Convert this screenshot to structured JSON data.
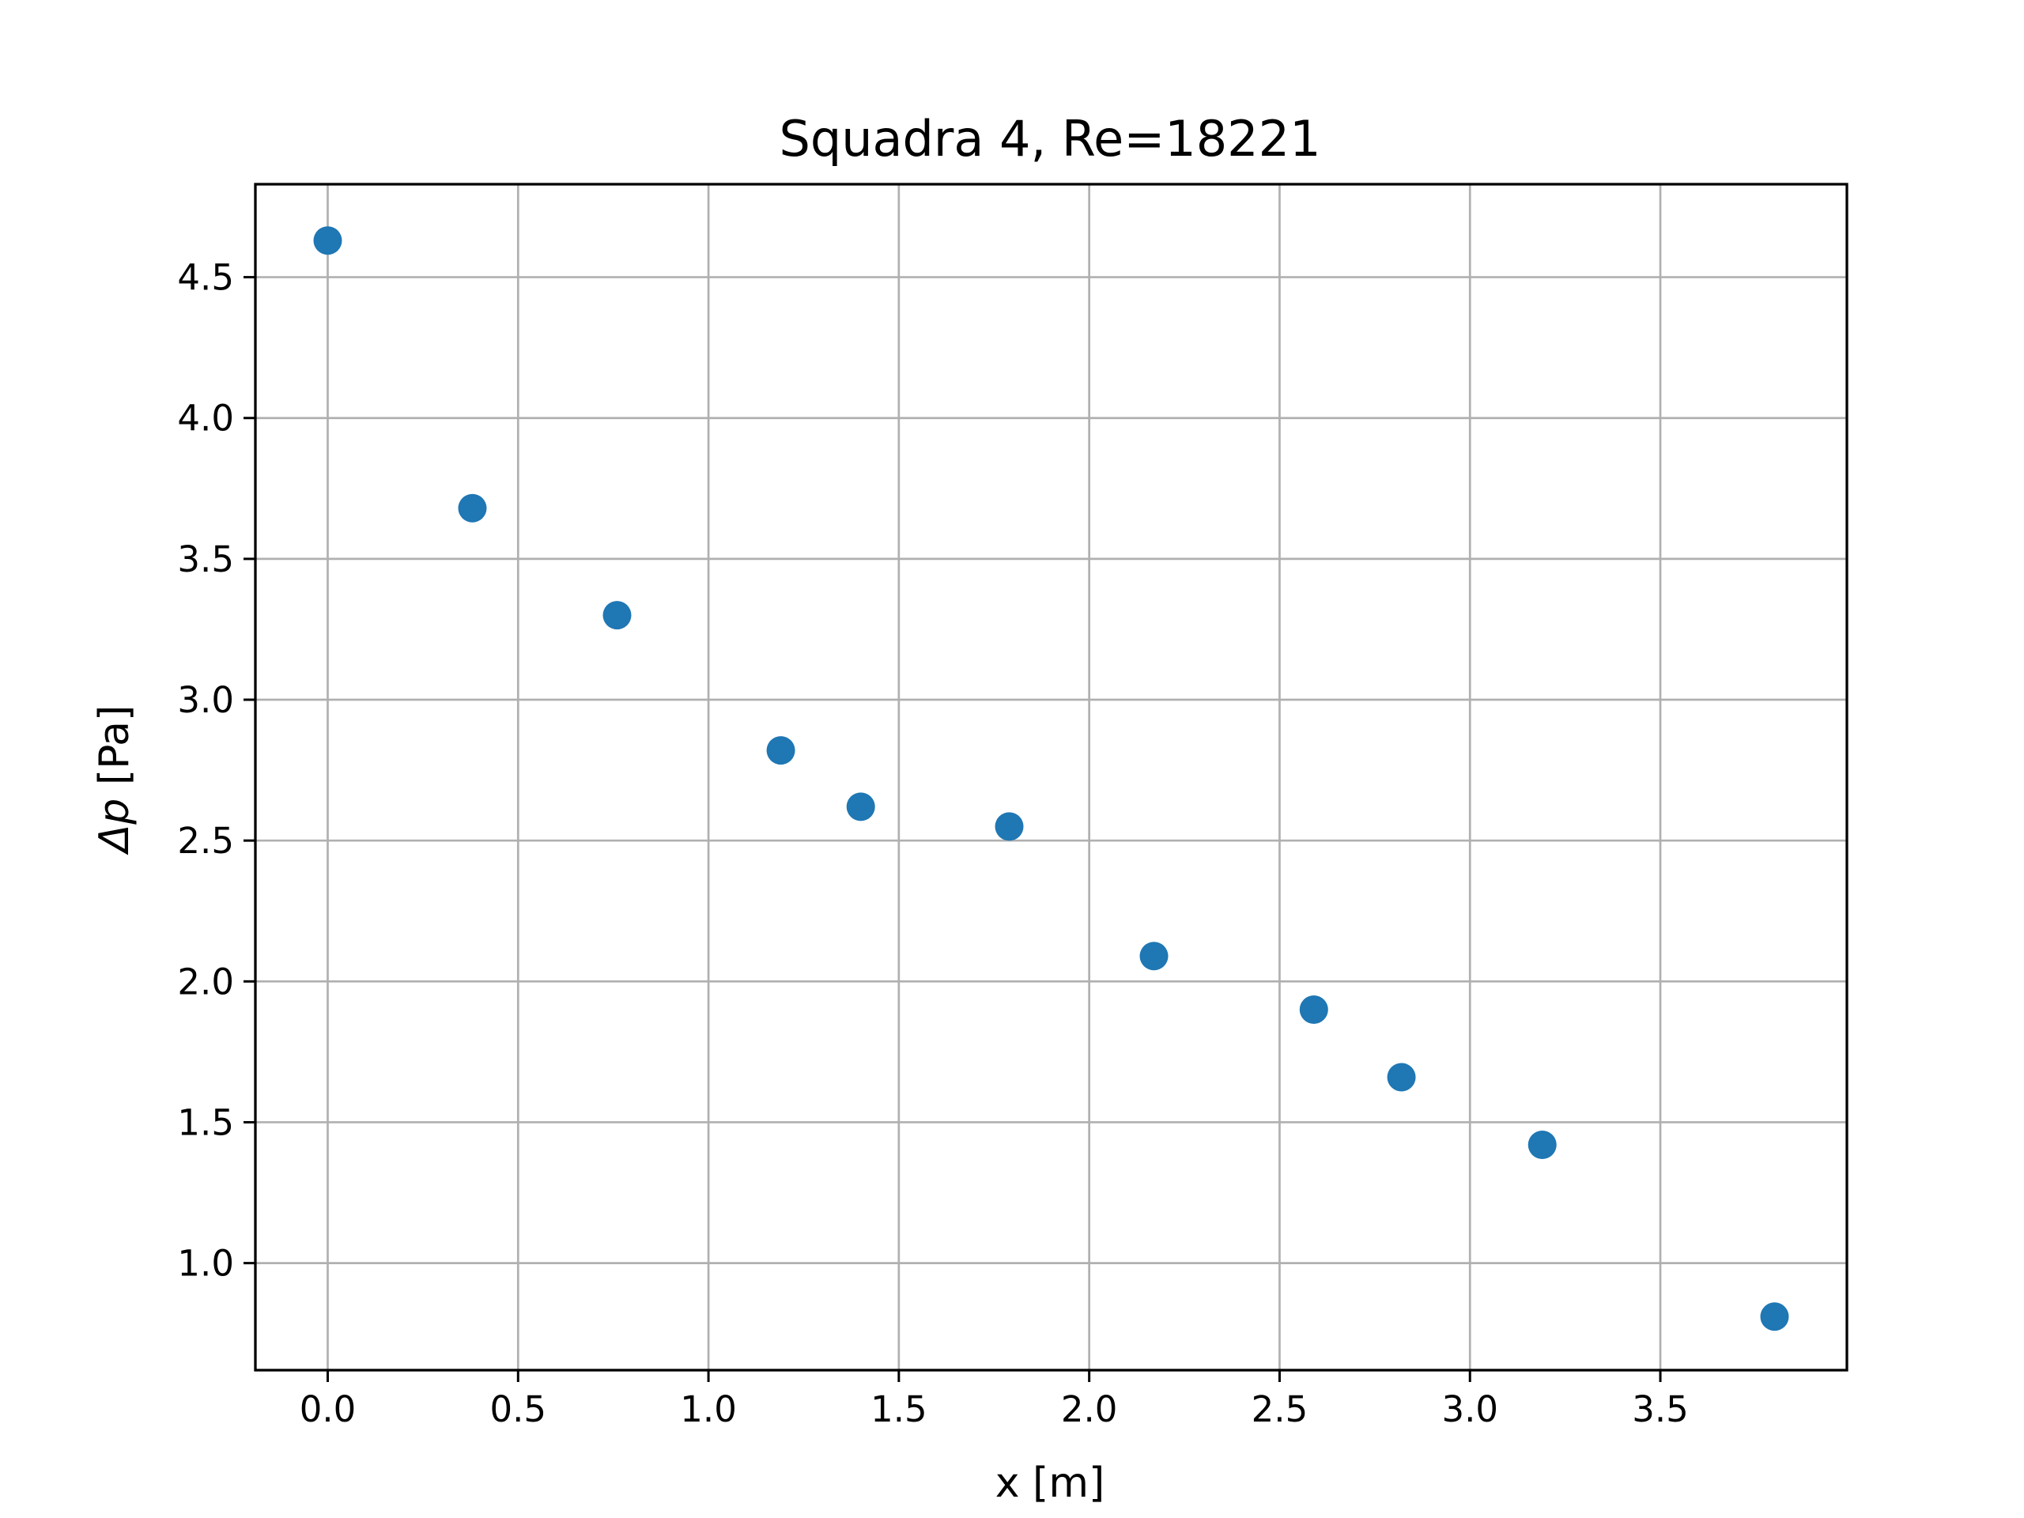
{
  "chart_data": {
    "type": "scatter",
    "title": "Squadra 4, Re=18221",
    "xlabel": "x [m]",
    "ylabel_symbol": "Δp",
    "ylabel_unit": " [Pa]",
    "xlim": [
      -0.19,
      3.99
    ],
    "ylim": [
      0.62,
      4.83
    ],
    "x_ticks": [
      0.0,
      0.5,
      1.0,
      1.5,
      2.0,
      2.5,
      3.0,
      3.5
    ],
    "x_tick_labels": [
      "0.0",
      "0.5",
      "1.0",
      "1.5",
      "2.0",
      "2.5",
      "3.0",
      "3.5"
    ],
    "y_ticks": [
      1.0,
      1.5,
      2.0,
      2.5,
      3.0,
      3.5,
      4.0,
      4.5
    ],
    "y_tick_labels": [
      "1.0",
      "1.5",
      "2.0",
      "2.5",
      "3.0",
      "3.5",
      "4.0",
      "4.5"
    ],
    "grid": true,
    "marker_color": "#1f77b4",
    "grid_color": "#b0b0b0",
    "points": [
      {
        "x": 0.0,
        "y": 4.63
      },
      {
        "x": 0.38,
        "y": 3.68
      },
      {
        "x": 0.76,
        "y": 3.3
      },
      {
        "x": 1.19,
        "y": 2.82
      },
      {
        "x": 1.4,
        "y": 2.62
      },
      {
        "x": 1.79,
        "y": 2.55
      },
      {
        "x": 2.17,
        "y": 2.09
      },
      {
        "x": 2.59,
        "y": 1.9
      },
      {
        "x": 2.82,
        "y": 1.66
      },
      {
        "x": 3.19,
        "y": 1.42
      },
      {
        "x": 3.8,
        "y": 0.81
      }
    ]
  }
}
